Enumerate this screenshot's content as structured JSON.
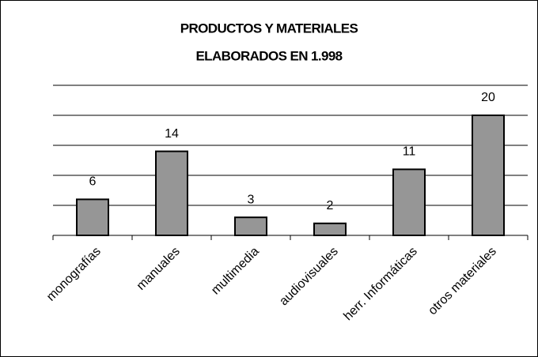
{
  "chart_data": {
    "type": "bar",
    "title": [
      "PRODUCTOS Y MATERIALES",
      "ELABORADOS EN 1.998"
    ],
    "categories": [
      "monografías",
      "manuales",
      "multimedia",
      "audiovisuales",
      "herr. Informáticas",
      "otros materiales"
    ],
    "values": [
      6,
      14,
      3,
      2,
      11,
      20
    ],
    "color": "#969696",
    "ylim": [
      0,
      25
    ],
    "yticks": [
      0,
      5,
      10,
      15,
      20,
      25
    ],
    "grid": true
  }
}
